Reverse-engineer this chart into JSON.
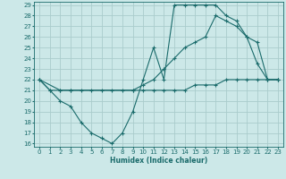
{
  "xlabel": "Humidex (Indice chaleur)",
  "background_color": "#cce8e8",
  "grid_color": "#aacccc",
  "line_color": "#1a6b6b",
  "xlim_min": -0.5,
  "xlim_max": 23.5,
  "ylim_min": 15.7,
  "ylim_max": 29.3,
  "xticks": [
    0,
    1,
    2,
    3,
    4,
    5,
    6,
    7,
    8,
    9,
    10,
    11,
    12,
    13,
    14,
    15,
    16,
    17,
    18,
    19,
    20,
    21,
    22,
    23
  ],
  "yticks": [
    16,
    17,
    18,
    19,
    20,
    21,
    22,
    23,
    24,
    25,
    26,
    27,
    28,
    29
  ],
  "line1_x": [
    0,
    1,
    2,
    3,
    4,
    5,
    6,
    7,
    8,
    9,
    10,
    11,
    12,
    13,
    14,
    15,
    16,
    17,
    18,
    19,
    20,
    21,
    22,
    23
  ],
  "line1_y": [
    22,
    21,
    20,
    19.5,
    18,
    17,
    16.5,
    16,
    17,
    19,
    22,
    25,
    22,
    29,
    29,
    29,
    29,
    29,
    28,
    27.5,
    26,
    23.5,
    22,
    22
  ],
  "line2_x": [
    0,
    2,
    3,
    9,
    10,
    11,
    12,
    13,
    14,
    15,
    16,
    17,
    18,
    19,
    20,
    21,
    22,
    23
  ],
  "line2_y": [
    22,
    21,
    21,
    21,
    21.5,
    22,
    23,
    24,
    25,
    25.5,
    26,
    28,
    27.5,
    27,
    26,
    25.5,
    22,
    22
  ],
  "line3_x": [
    0,
    1,
    2,
    3,
    4,
    5,
    6,
    7,
    8,
    9,
    10,
    11,
    12,
    13,
    14,
    15,
    16,
    17,
    18,
    19,
    20,
    21,
    22,
    23
  ],
  "line3_y": [
    22,
    21,
    21,
    21,
    21,
    21,
    21,
    21,
    21,
    21,
    21,
    21,
    21,
    21,
    21,
    21.5,
    21.5,
    21.5,
    22,
    22,
    22,
    22,
    22,
    22
  ],
  "tick_fontsize": 5,
  "xlabel_fontsize": 5.5,
  "xlabel_fontweight": "bold"
}
